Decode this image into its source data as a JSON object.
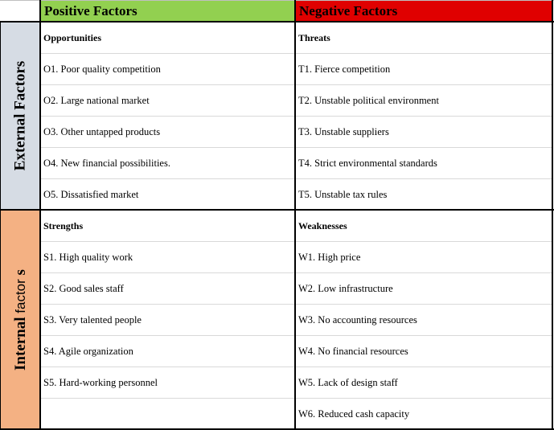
{
  "header": {
    "positive": "Positive Factors",
    "negative": "Negative Factors"
  },
  "side": {
    "external": "External Factors",
    "internal_bold": "Internal",
    "internal_light": "factor",
    "internal_tail": "s"
  },
  "external": {
    "positive_title": "Opportunities",
    "negative_title": "Threats",
    "positive": [
      "O1. Poor quality competition",
      "O2. Large national market",
      "O3. Other untapped products",
      "O4. New financial possibilities.",
      "O5. Dissatisfied market"
    ],
    "negative": [
      "T1. Fierce competition",
      "T2. Unstable political environment",
      "T3. Unstable suppliers",
      "T4. Strict environmental standards",
      "T5. Unstable tax rules"
    ]
  },
  "internal": {
    "positive_title": "Strengths",
    "negative_title": "Weaknesses",
    "positive": [
      "S1. High quality work",
      "S2. Good sales staff",
      "S3. Very talented people",
      "S4. Agile organization",
      "S5. Hard-working personnel",
      ""
    ],
    "negative": [
      "W1. High price",
      "W2. Low infrastructure",
      "W3. No accounting resources",
      "W4. No financial resources",
      "W5. Lack of design staff",
      "W6. Reduced cash capacity"
    ]
  },
  "colors": {
    "positive_header": "#92d050",
    "negative_header": "#e00000",
    "external_side": "#d6dce4",
    "internal_side": "#f4b183"
  }
}
